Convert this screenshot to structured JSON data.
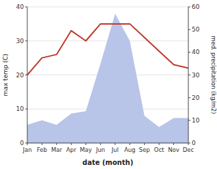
{
  "chart_data": {
    "type": "line",
    "xlabel": "date (month)",
    "ylabel": "max temp (C)",
    "y2label": "med. precipitation (kg/m2)",
    "categories": [
      "Jan",
      "Feb",
      "Mar",
      "Apr",
      "May",
      "Jun",
      "Jul",
      "Aug",
      "Sep",
      "Oct",
      "Nov",
      "Dec"
    ],
    "series": [
      {
        "type": "area",
        "axis": "y2",
        "color": "#b8c4e8",
        "values": [
          8,
          10,
          8,
          13,
          14,
          35,
          57,
          45,
          12,
          7,
          11,
          11
        ]
      },
      {
        "type": "line",
        "color": "#c0392b",
        "values": [
          20,
          25,
          26,
          33,
          30,
          35,
          35,
          35,
          31,
          27,
          23,
          22
        ]
      }
    ],
    "ylim": [
      0,
      40
    ],
    "yticks": [
      0,
      10,
      20,
      30,
      40
    ],
    "y2lim": [
      0,
      60
    ],
    "y2ticks": [
      0,
      10,
      20,
      30,
      40,
      50,
      60
    ],
    "grid": true
  }
}
